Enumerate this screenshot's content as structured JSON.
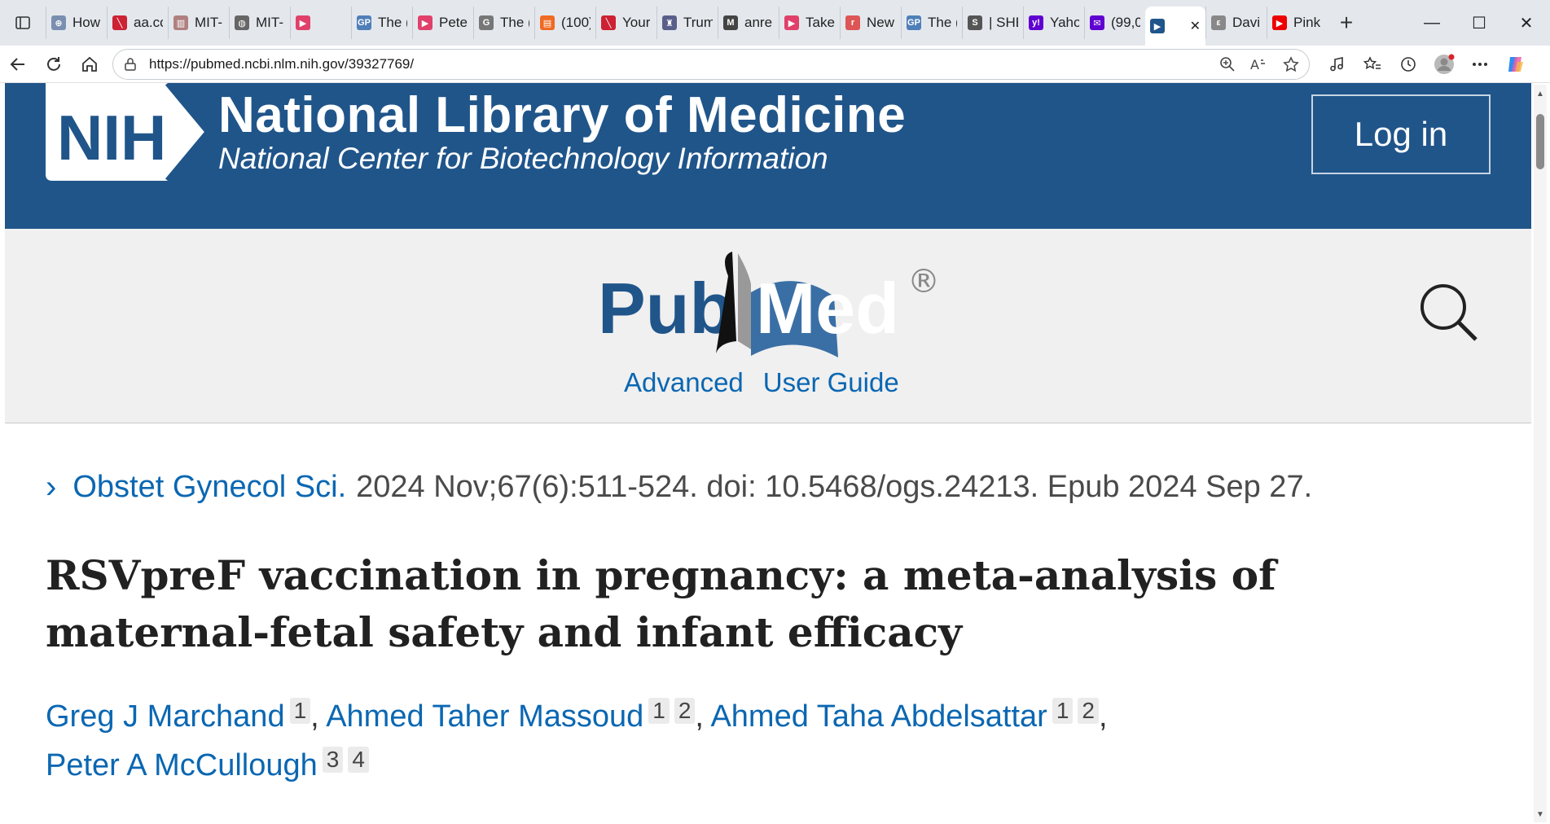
{
  "browser": {
    "tabs": [
      {
        "title": "How",
        "color": "#7a8fb0",
        "glyph": "⊕"
      },
      {
        "title": "aa.cc",
        "color": "#c23",
        "glyph": "╲"
      },
      {
        "title": "MIT-",
        "color": "#b08080",
        "glyph": "▥"
      },
      {
        "title": "MIT-",
        "color": "#666",
        "glyph": "◍"
      },
      {
        "title": "",
        "color": "#e0406a",
        "glyph": "▶"
      },
      {
        "title": "The (",
        "color": "#4f7fb8",
        "glyph": "GP"
      },
      {
        "title": "Peter",
        "color": "#e0406a",
        "glyph": "▶"
      },
      {
        "title": "The (",
        "color": "#777",
        "glyph": "G"
      },
      {
        "title": "(100)",
        "color": "#ef6a22",
        "glyph": "▤"
      },
      {
        "title": "Your",
        "color": "#c23",
        "glyph": "╲"
      },
      {
        "title": "Trum",
        "color": "#5a5f8a",
        "glyph": "♜"
      },
      {
        "title": "anre",
        "color": "#444",
        "glyph": "M"
      },
      {
        "title": "Take",
        "color": "#e0406a",
        "glyph": "▶"
      },
      {
        "title": "New",
        "color": "#d55",
        "glyph": "r"
      },
      {
        "title": "The (",
        "color": "#4f7fb8",
        "glyph": "GP"
      },
      {
        "title": "| SHE",
        "color": "#555",
        "glyph": "S"
      },
      {
        "title": "Yaho",
        "color": "#5f01d1",
        "glyph": "y!"
      },
      {
        "title": "(99,0",
        "color": "#5f01d1",
        "glyph": "✉"
      },
      {
        "title": "",
        "color": "#20558a",
        "glyph": "▶"
      },
      {
        "title": "Davi",
        "color": "#888",
        "glyph": "ε"
      },
      {
        "title": "Pink",
        "color": "#e00",
        "glyph": "▶"
      }
    ],
    "url": "https://pubmed.ncbi.nlm.nih.gov/39327769/"
  },
  "header": {
    "nih_mark": "NIH",
    "title": "National Library of Medicine",
    "subtitle": "National Center for Biotechnology Information",
    "login_label": "Log in"
  },
  "pubmed": {
    "logo_text_left": "Pub",
    "logo_text_right": "Med",
    "registered": "®",
    "links": [
      "Advanced",
      "User Guide"
    ]
  },
  "article": {
    "journal": "Obstet Gynecol Sci.",
    "citation": "2024 Nov;67(6):511-524. doi: 10.5468/ogs.24213. Epub 2024 Sep 27.",
    "title": "RSVpreF vaccination in pregnancy: a meta-analysis of maternal-fetal safety and infant efficacy",
    "authors": [
      {
        "name": "Greg J Marchand",
        "affs": [
          "1"
        ]
      },
      {
        "name": "Ahmed Taher Massoud",
        "affs": [
          "1",
          "2"
        ]
      },
      {
        "name": "Ahmed Taha Abdelsattar",
        "affs": [
          "1",
          "2"
        ]
      },
      {
        "name": "Peter A McCullough",
        "affs": [
          "3",
          "4"
        ]
      }
    ]
  }
}
